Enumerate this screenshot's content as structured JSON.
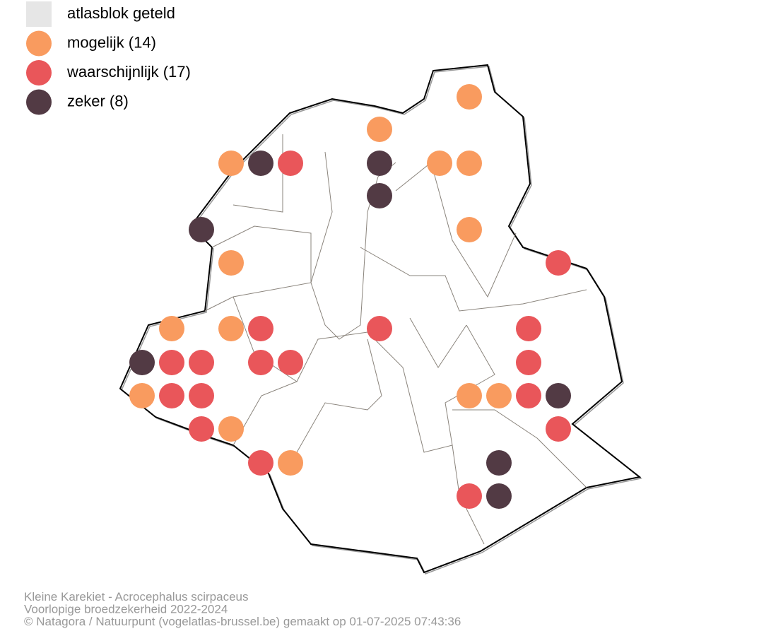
{
  "legend": [
    {
      "label": "atlasblok geteld",
      "color": "#e6e6e6"
    },
    {
      "label": "mogelijk (14)",
      "color": "#f99b5f"
    },
    {
      "label": "waarschijnlijk (17)",
      "color": "#e9565a"
    },
    {
      "label": "zeker (8)",
      "color": "#523a44"
    }
  ],
  "footer": [
    "Kleine Karekiet - Acrocephalus scirpaceus",
    "Voorlopige broedzekerheid 2022-2024",
    "© Natagora / Natuurpunt (vogelatlas-brussel.be) gemaakt op 01-07-2025 07:43:36"
  ]
}
